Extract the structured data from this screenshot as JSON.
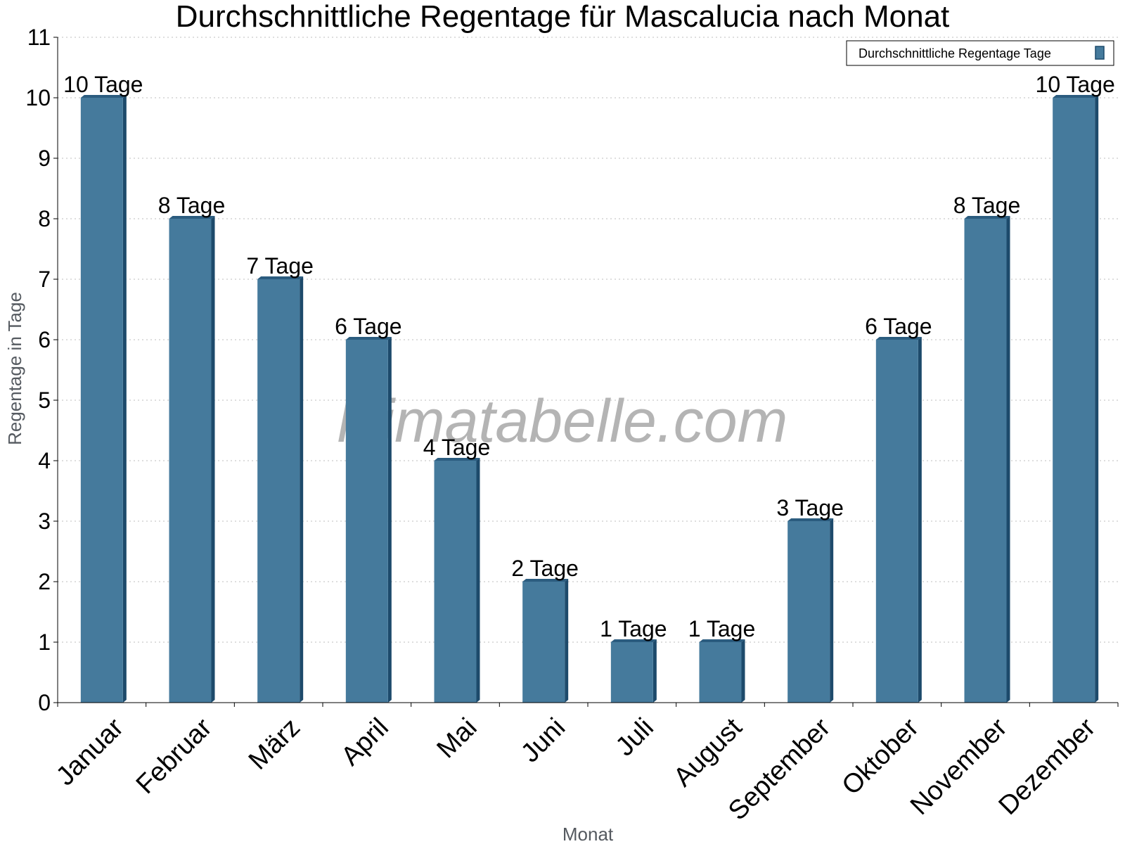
{
  "chart_data": {
    "type": "bar",
    "title": "Durchschnittliche Regentage für Mascalucia nach Monat",
    "xlabel": "Monat",
    "ylabel": "Regentage in Tage",
    "categories": [
      "Januar",
      "Februar",
      "März",
      "April",
      "Mai",
      "Juni",
      "Juli",
      "August",
      "September",
      "Oktober",
      "November",
      "Dezember"
    ],
    "series": [
      {
        "name": "Durchschnittliche Regentage Tage",
        "values": [
          10,
          8,
          7,
          6,
          4,
          2,
          1,
          1,
          3,
          6,
          8,
          10
        ],
        "labels": [
          "10 Tage",
          "8 Tage",
          "7 Tage",
          "6 Tage",
          "4 Tage",
          "2 Tage",
          "1 Tage",
          "1 Tage",
          "3 Tage",
          "6 Tage",
          "8 Tage",
          "10 Tage"
        ]
      }
    ],
    "yticks": [
      "0",
      "1",
      "2",
      "3",
      "4",
      "5",
      "6",
      "7",
      "8",
      "9",
      "10",
      "11"
    ],
    "ylim": [
      0,
      11
    ],
    "grid": true,
    "legend_position": "top-right",
    "watermark": "klimatabelle.com",
    "colors": {
      "bar": "#457a9c",
      "bar_side": "#1d4a6b",
      "bar_top": "#2b5c7f"
    }
  }
}
